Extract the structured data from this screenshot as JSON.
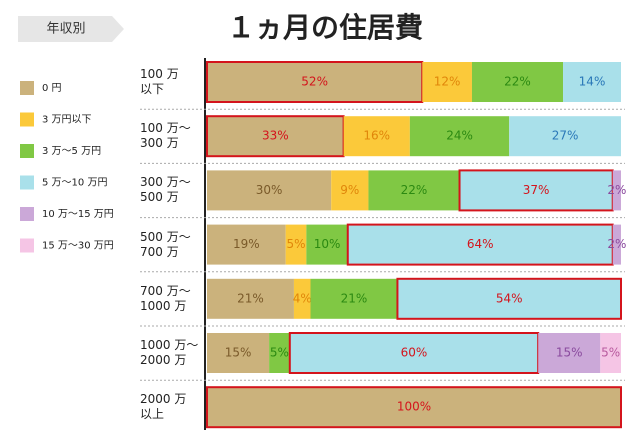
{
  "chart_data": {
    "type": "bar",
    "orientation": "horizontal",
    "stacked": true,
    "title": "１ヵ月の住居費",
    "subtitle": "年収別",
    "categories": [
      "100 万\n以下",
      "100 万～\n300 万",
      "300 万～\n500 万",
      "500 万～\n700 万",
      "700 万～\n1000 万",
      "1000 万～\n2000 万",
      "2000 万\n以上"
    ],
    "xlim": [
      0,
      100
    ],
    "highlight": [
      0,
      0,
      3,
      3,
      3,
      3,
      0
    ],
    "highlight_color": "#d4141c",
    "series": [
      {
        "name": "0 円",
        "color": "#cbb27c",
        "label_color": "#7a5a2a",
        "values": [
          52,
          33,
          30,
          19,
          21,
          15,
          100
        ],
        "value_labels": [
          "52%",
          "33%",
          "30%",
          "19%",
          "21%",
          "15%",
          "100%"
        ]
      },
      {
        "name": "3 万円以下",
        "color": "#fbc93a",
        "label_color": "#e0860a",
        "values": [
          12,
          16,
          9,
          5,
          4,
          null,
          null
        ],
        "value_labels": [
          "12%",
          "16%",
          "9%",
          "5%",
          "4%",
          null,
          null
        ]
      },
      {
        "name": "3 万～5 万円",
        "color": "#80c844",
        "label_color": "#2c8a12",
        "values": [
          22,
          24,
          22,
          10,
          21,
          5,
          null
        ],
        "value_labels": [
          "22%",
          "24%",
          "22%",
          "10%",
          "21%",
          "5%",
          null
        ]
      },
      {
        "name": "5 万～10 万円",
        "color": "#a9e0ea",
        "label_color": "#2a78b8",
        "values": [
          14,
          27,
          37,
          64,
          54,
          60,
          null
        ],
        "value_labels": [
          "14%",
          "27%",
          "37%",
          "64%",
          "54%",
          "60%",
          null
        ]
      },
      {
        "name": "10 万～15 万円",
        "color": "#cba8d8",
        "label_color": "#8a4a9e",
        "values": [
          null,
          null,
          2,
          2,
          null,
          15,
          null
        ],
        "value_labels": [
          null,
          null,
          "2%",
          "2%",
          null,
          "15%",
          null
        ]
      },
      {
        "name": "15 万～30 万円",
        "color": "#f5c5e5",
        "label_color": "#b85a9e",
        "values": [
          null,
          null,
          null,
          null,
          null,
          5,
          null
        ],
        "value_labels": [
          null,
          null,
          null,
          null,
          null,
          "5%",
          null
        ]
      }
    ]
  }
}
